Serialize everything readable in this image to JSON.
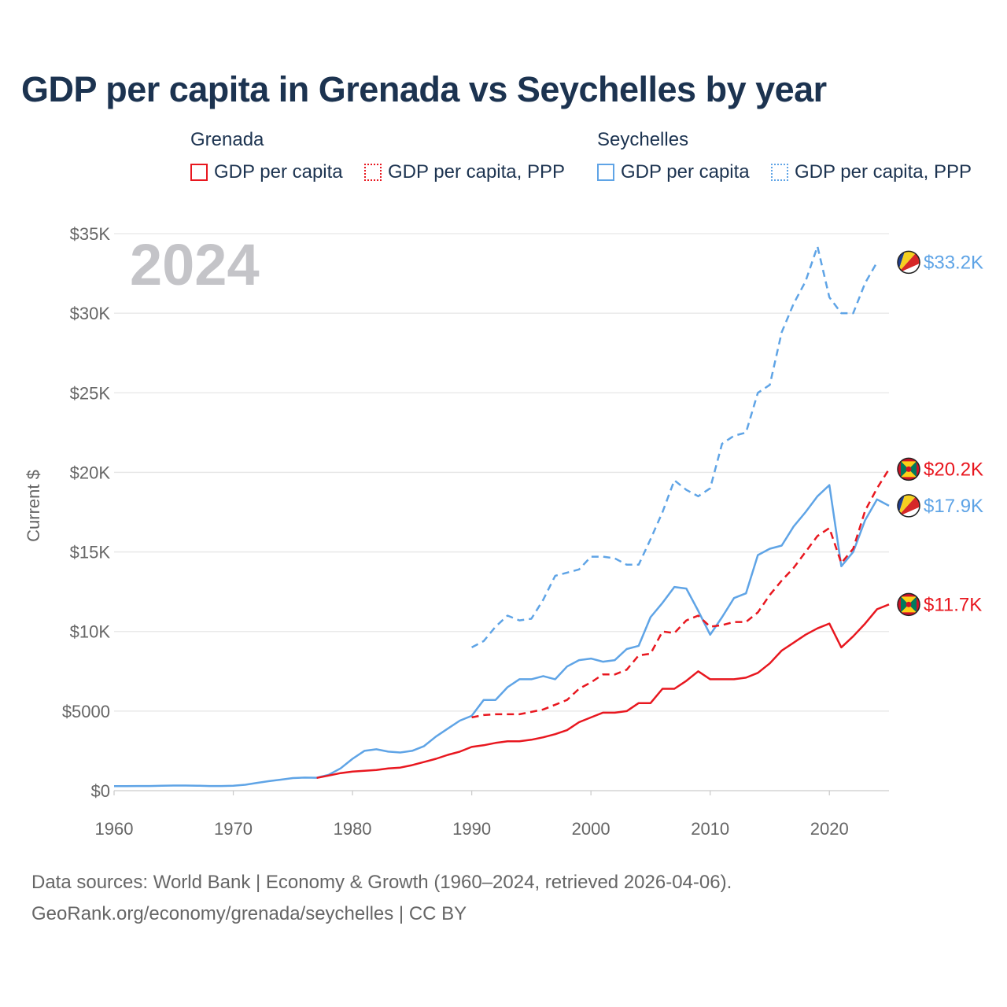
{
  "chart_data": {
    "type": "line",
    "title": "GDP per capita in Grenada vs Seychelles by year",
    "ylabel": "Current $",
    "xlabel": "",
    "year_label": "2024",
    "xlim": [
      1960,
      2024
    ],
    "ylim": [
      0,
      35000
    ],
    "x_ticks": [
      {
        "value": 1960,
        "label": "1960"
      },
      {
        "value": 1970,
        "label": "1970"
      },
      {
        "value": 1980,
        "label": "1980"
      },
      {
        "value": 1990,
        "label": "1990"
      },
      {
        "value": 2000,
        "label": "2000"
      },
      {
        "value": 2010,
        "label": "2010"
      },
      {
        "value": 2020,
        "label": "2020"
      }
    ],
    "y_ticks": [
      {
        "value": 0,
        "label": "$0"
      },
      {
        "value": 5000,
        "label": "$5000"
      },
      {
        "value": 10000,
        "label": "$10K"
      },
      {
        "value": 15000,
        "label": "$15K"
      },
      {
        "value": 20000,
        "label": "$20K"
      },
      {
        "value": 25000,
        "label": "$25K"
      },
      {
        "value": 30000,
        "label": "$30K"
      },
      {
        "value": 35000,
        "label": "$35K"
      }
    ],
    "legend": {
      "groups": [
        {
          "title": "Grenada",
          "items": [
            {
              "label": "GDP per capita",
              "color": "#e8171f",
              "style": "solid"
            },
            {
              "label": "GDP per capita, PPP",
              "color": "#e8171f",
              "style": "dashed"
            }
          ]
        },
        {
          "title": "Seychelles",
          "items": [
            {
              "label": "GDP per capita",
              "color": "#5fa4e6",
              "style": "solid"
            },
            {
              "label": "GDP per capita, PPP",
              "color": "#5fa4e6",
              "style": "dashed"
            }
          ]
        }
      ]
    },
    "series": [
      {
        "name": "Seychelles GDP per capita, PPP",
        "country": "Seychelles",
        "color": "#5fa4e6",
        "dashed": true,
        "end_label": "$33.2K",
        "flag": "seychelles",
        "points": [
          [
            1990,
            9000
          ],
          [
            1991,
            9400
          ],
          [
            1992,
            10300
          ],
          [
            1993,
            11000
          ],
          [
            1994,
            10700
          ],
          [
            1995,
            10800
          ],
          [
            1996,
            12000
          ],
          [
            1997,
            13500
          ],
          [
            1998,
            13700
          ],
          [
            1999,
            13900
          ],
          [
            2000,
            14700
          ],
          [
            2001,
            14700
          ],
          [
            2002,
            14600
          ],
          [
            2003,
            14200
          ],
          [
            2004,
            14200
          ],
          [
            2005,
            15800
          ],
          [
            2006,
            17500
          ],
          [
            2007,
            19500
          ],
          [
            2008,
            18900
          ],
          [
            2009,
            18500
          ],
          [
            2010,
            19000
          ],
          [
            2011,
            21800
          ],
          [
            2012,
            22300
          ],
          [
            2013,
            22500
          ],
          [
            2014,
            25000
          ],
          [
            2015,
            25500
          ],
          [
            2016,
            28800
          ],
          [
            2017,
            30600
          ],
          [
            2018,
            32000
          ],
          [
            2019,
            34200
          ],
          [
            2020,
            31000
          ],
          [
            2021,
            30000
          ],
          [
            2022,
            30000
          ],
          [
            2023,
            31900
          ],
          [
            2024,
            33200
          ]
        ]
      },
      {
        "name": "Seychelles GDP per capita",
        "country": "Seychelles",
        "color": "#5fa4e6",
        "dashed": false,
        "end_label": "$17.9K",
        "flag": "seychelles",
        "points": [
          [
            1960,
            280
          ],
          [
            1961,
            280
          ],
          [
            1962,
            290
          ],
          [
            1963,
            290
          ],
          [
            1964,
            310
          ],
          [
            1965,
            320
          ],
          [
            1966,
            320
          ],
          [
            1967,
            310
          ],
          [
            1968,
            290
          ],
          [
            1969,
            290
          ],
          [
            1970,
            310
          ],
          [
            1971,
            370
          ],
          [
            1972,
            490
          ],
          [
            1973,
            600
          ],
          [
            1974,
            690
          ],
          [
            1975,
            790
          ],
          [
            1976,
            820
          ],
          [
            1977,
            810
          ],
          [
            1978,
            1000
          ],
          [
            1979,
            1400
          ],
          [
            1980,
            2000
          ],
          [
            1981,
            2500
          ],
          [
            1982,
            2600
          ],
          [
            1983,
            2450
          ],
          [
            1984,
            2400
          ],
          [
            1985,
            2500
          ],
          [
            1986,
            2800
          ],
          [
            1987,
            3400
          ],
          [
            1988,
            3900
          ],
          [
            1989,
            4400
          ],
          [
            1990,
            4700
          ],
          [
            1991,
            5700
          ],
          [
            1992,
            5700
          ],
          [
            1993,
            6500
          ],
          [
            1994,
            7000
          ],
          [
            1995,
            7000
          ],
          [
            1996,
            7200
          ],
          [
            1997,
            7000
          ],
          [
            1998,
            7800
          ],
          [
            1999,
            8200
          ],
          [
            2000,
            8300
          ],
          [
            2001,
            8100
          ],
          [
            2002,
            8200
          ],
          [
            2003,
            8900
          ],
          [
            2004,
            9100
          ],
          [
            2005,
            10900
          ],
          [
            2006,
            11800
          ],
          [
            2007,
            12800
          ],
          [
            2008,
            12700
          ],
          [
            2009,
            11300
          ],
          [
            2010,
            9800
          ],
          [
            2011,
            10900
          ],
          [
            2012,
            12100
          ],
          [
            2013,
            12400
          ],
          [
            2014,
            14800
          ],
          [
            2015,
            15200
          ],
          [
            2016,
            15400
          ],
          [
            2017,
            16600
          ],
          [
            2018,
            17500
          ],
          [
            2019,
            18500
          ],
          [
            2020,
            19200
          ],
          [
            2021,
            14100
          ],
          [
            2022,
            15000
          ],
          [
            2023,
            17000
          ],
          [
            2024,
            18300
          ],
          [
            2025,
            17900
          ]
        ]
      },
      {
        "name": "Grenada GDP per capita, PPP",
        "country": "Grenada",
        "color": "#e8171f",
        "dashed": true,
        "end_label": "$20.2K",
        "flag": "grenada",
        "points": [
          [
            1990,
            4600
          ],
          [
            1991,
            4750
          ],
          [
            1992,
            4800
          ],
          [
            1993,
            4800
          ],
          [
            1994,
            4800
          ],
          [
            1995,
            4950
          ],
          [
            1996,
            5100
          ],
          [
            1997,
            5400
          ],
          [
            1998,
            5700
          ],
          [
            1999,
            6400
          ],
          [
            2000,
            6800
          ],
          [
            2001,
            7300
          ],
          [
            2002,
            7300
          ],
          [
            2003,
            7600
          ],
          [
            2004,
            8500
          ],
          [
            2005,
            8600
          ],
          [
            2006,
            10000
          ],
          [
            2007,
            9900
          ],
          [
            2008,
            10700
          ],
          [
            2009,
            11000
          ],
          [
            2010,
            10300
          ],
          [
            2011,
            10400
          ],
          [
            2012,
            10600
          ],
          [
            2013,
            10600
          ],
          [
            2014,
            11200
          ],
          [
            2015,
            12300
          ],
          [
            2016,
            13200
          ],
          [
            2017,
            14000
          ],
          [
            2018,
            15000
          ],
          [
            2019,
            16000
          ],
          [
            2020,
            16500
          ],
          [
            2021,
            14300
          ],
          [
            2022,
            15200
          ],
          [
            2023,
            17600
          ],
          [
            2024,
            19000
          ],
          [
            2025,
            20200
          ]
        ]
      },
      {
        "name": "Grenada GDP per capita",
        "country": "Grenada",
        "color": "#e8171f",
        "dashed": false,
        "end_label": "$11.7K",
        "flag": "grenada",
        "points": [
          [
            1977,
            800
          ],
          [
            1978,
            950
          ],
          [
            1979,
            1100
          ],
          [
            1980,
            1200
          ],
          [
            1981,
            1250
          ],
          [
            1982,
            1300
          ],
          [
            1983,
            1400
          ],
          [
            1984,
            1450
          ],
          [
            1985,
            1600
          ],
          [
            1986,
            1800
          ],
          [
            1987,
            2000
          ],
          [
            1988,
            2250
          ],
          [
            1989,
            2450
          ],
          [
            1990,
            2750
          ],
          [
            1991,
            2850
          ],
          [
            1992,
            3000
          ],
          [
            1993,
            3100
          ],
          [
            1994,
            3100
          ],
          [
            1995,
            3200
          ],
          [
            1996,
            3350
          ],
          [
            1997,
            3550
          ],
          [
            1998,
            3800
          ],
          [
            1999,
            4300
          ],
          [
            2000,
            4600
          ],
          [
            2001,
            4900
          ],
          [
            2002,
            4900
          ],
          [
            2003,
            5000
          ],
          [
            2004,
            5500
          ],
          [
            2005,
            5500
          ],
          [
            2006,
            6400
          ],
          [
            2007,
            6400
          ],
          [
            2008,
            6900
          ],
          [
            2009,
            7500
          ],
          [
            2010,
            7000
          ],
          [
            2011,
            7000
          ],
          [
            2012,
            7000
          ],
          [
            2013,
            7100
          ],
          [
            2014,
            7400
          ],
          [
            2015,
            8000
          ],
          [
            2016,
            8800
          ],
          [
            2017,
            9300
          ],
          [
            2018,
            9800
          ],
          [
            2019,
            10200
          ],
          [
            2020,
            10500
          ],
          [
            2021,
            9000
          ],
          [
            2022,
            9700
          ],
          [
            2023,
            10500
          ],
          [
            2024,
            11400
          ],
          [
            2025,
            11700
          ]
        ]
      }
    ]
  },
  "footer": {
    "line1": "Data sources: World Bank | Economy & Growth (1960–2024, retrieved 2026-04-06).",
    "line2": "GeoRank.org/economy/grenada/seychelles | CC BY"
  }
}
